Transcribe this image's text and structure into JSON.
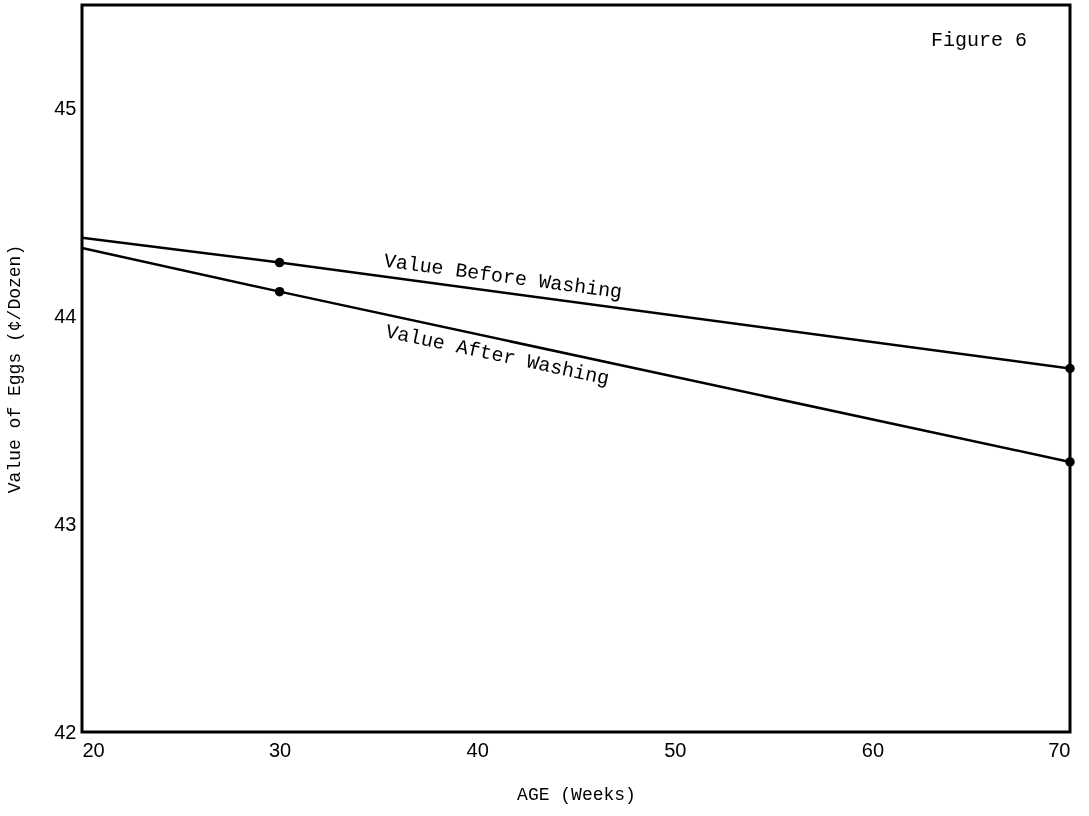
{
  "chart_data": {
    "type": "line",
    "xlabel": "AGE (Weeks)",
    "ylabel": "Value of Eggs (¢/Dozen)",
    "annotations": [
      "Figure 6"
    ],
    "xlim": [
      20,
      70
    ],
    "xticks": [
      20,
      30,
      40,
      50,
      60,
      70
    ],
    "ylim": [
      42,
      45.5
    ],
    "yticks": [
      42,
      43,
      44,
      45
    ],
    "grid": false,
    "legend": false,
    "line_style": "solid",
    "series": [
      {
        "name": "Value Before Washing",
        "type": "line",
        "color": "#000000",
        "x": [
          20,
          30,
          70
        ],
        "values": [
          44.38,
          44.26,
          43.75
        ]
      },
      {
        "name": "Value After Washing",
        "type": "line",
        "color": "#000000",
        "x": [
          20,
          30,
          70
        ],
        "values": [
          44.33,
          44.12,
          43.3
        ]
      },
      {
        "type": "scatter",
        "color": "#000000",
        "marker": "circle",
        "x": [
          30,
          70
        ],
        "values": [
          44.26,
          43.75
        ]
      },
      {
        "type": "scatter",
        "color": "#000000",
        "marker": "circle",
        "x": [
          30,
          70
        ],
        "values": [
          44.12,
          43.3
        ]
      }
    ]
  }
}
